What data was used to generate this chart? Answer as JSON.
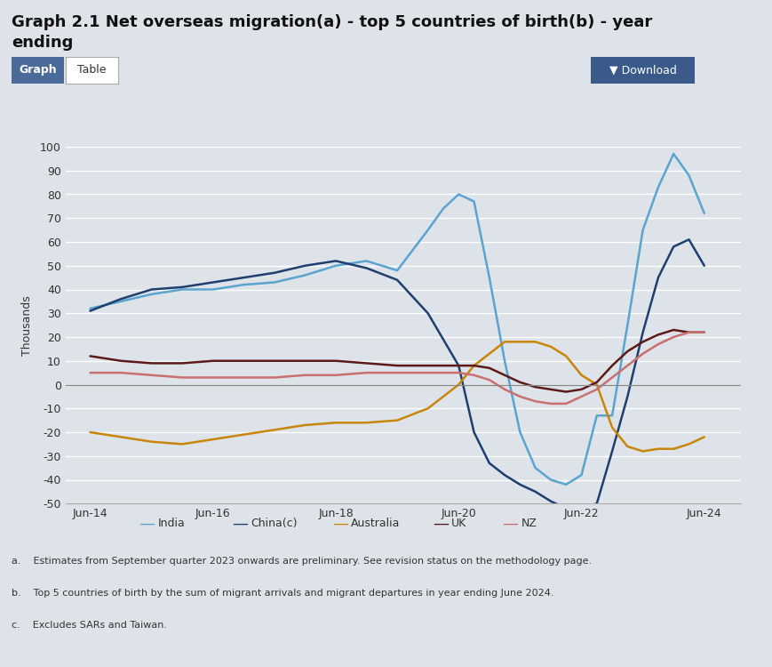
{
  "title": "Graph 2.1 Net overseas migration(a) - top 5 countries of birth(b) - year\nending",
  "ylabel": "Thousands",
  "bg_color": "#dde3e8",
  "plot_bg_color": "#dde3e8",
  "ylim": [
    -50,
    100
  ],
  "yticks": [
    -50,
    -40,
    -30,
    -20,
    -10,
    0,
    10,
    20,
    30,
    40,
    50,
    60,
    70,
    80,
    90,
    100
  ],
  "footnotes": [
    "a.    Estimates from September quarter 2023 onwards are preliminary. See revision status on the methodology page.",
    "b.    Top 5 countries of birth by the sum of migrant arrivals and migrant departures in year ending June 2024.",
    "c.    Excludes SARs and Taiwan."
  ],
  "series": {
    "India": {
      "color": "#5ba4cf",
      "x": [
        2014,
        2014.5,
        2015,
        2015.5,
        2016,
        2016.5,
        2017,
        2017.5,
        2018,
        2018.5,
        2019,
        2019.5,
        2019.75,
        2020,
        2020.25,
        2020.5,
        2020.75,
        2021,
        2021.25,
        2021.5,
        2021.75,
        2022,
        2022.25,
        2022.5,
        2022.75,
        2023,
        2023.25,
        2023.5,
        2023.75,
        2024
      ],
      "y": [
        32,
        35,
        38,
        40,
        40,
        42,
        43,
        46,
        50,
        52,
        48,
        65,
        74,
        80,
        77,
        45,
        10,
        -20,
        -35,
        -40,
        -42,
        -38,
        -13,
        -13,
        25,
        65,
        83,
        97,
        88,
        72
      ]
    },
    "China(c)": {
      "color": "#1f3f6e",
      "x": [
        2014,
        2014.5,
        2015,
        2015.5,
        2016,
        2016.5,
        2017,
        2017.5,
        2018,
        2018.5,
        2019,
        2019.5,
        2020,
        2020.25,
        2020.5,
        2020.75,
        2021,
        2021.25,
        2021.5,
        2021.75,
        2022,
        2022.25,
        2022.5,
        2022.75,
        2023,
        2023.25,
        2023.5,
        2023.75,
        2024
      ],
      "y": [
        31,
        36,
        40,
        41,
        43,
        45,
        47,
        50,
        52,
        49,
        44,
        30,
        8,
        -20,
        -33,
        -38,
        -42,
        -45,
        -49,
        -52,
        -52,
        -50,
        -28,
        -5,
        22,
        45,
        58,
        61,
        50
      ]
    },
    "Australia": {
      "color": "#c8860a",
      "x": [
        2014,
        2014.5,
        2015,
        2015.5,
        2016,
        2016.5,
        2017,
        2017.5,
        2018,
        2018.5,
        2019,
        2019.5,
        2020,
        2020.25,
        2020.5,
        2020.75,
        2021,
        2021.25,
        2021.5,
        2021.75,
        2022,
        2022.25,
        2022.5,
        2022.75,
        2023,
        2023.25,
        2023.5,
        2023.75,
        2024
      ],
      "y": [
        -20,
        -22,
        -24,
        -25,
        -23,
        -21,
        -19,
        -17,
        -16,
        -16,
        -15,
        -10,
        0,
        8,
        13,
        18,
        18,
        18,
        16,
        12,
        4,
        0,
        -18,
        -26,
        -28,
        -27,
        -27,
        -25,
        -22
      ]
    },
    "UK": {
      "color": "#5c1a1a",
      "x": [
        2014,
        2014.5,
        2015,
        2015.5,
        2016,
        2016.5,
        2017,
        2017.5,
        2018,
        2018.5,
        2019,
        2019.5,
        2020,
        2020.25,
        2020.5,
        2020.75,
        2021,
        2021.25,
        2021.5,
        2021.75,
        2022,
        2022.25,
        2022.5,
        2022.75,
        2023,
        2023.25,
        2023.5,
        2023.75,
        2024
      ],
      "y": [
        12,
        10,
        9,
        9,
        10,
        10,
        10,
        10,
        10,
        9,
        8,
        8,
        8,
        8,
        7,
        4,
        1,
        -1,
        -2,
        -3,
        -2,
        1,
        8,
        14,
        18,
        21,
        23,
        22,
        22
      ]
    },
    "NZ": {
      "color": "#c87070",
      "x": [
        2014,
        2014.5,
        2015,
        2015.5,
        2016,
        2016.5,
        2017,
        2017.5,
        2018,
        2018.5,
        2019,
        2019.5,
        2020,
        2020.25,
        2020.5,
        2020.75,
        2021,
        2021.25,
        2021.5,
        2021.75,
        2022,
        2022.25,
        2022.5,
        2022.75,
        2023,
        2023.25,
        2023.5,
        2023.75,
        2024
      ],
      "y": [
        5,
        5,
        4,
        3,
        3,
        3,
        3,
        4,
        4,
        5,
        5,
        5,
        5,
        4,
        2,
        -2,
        -5,
        -7,
        -8,
        -8,
        -5,
        -2,
        3,
        8,
        13,
        17,
        20,
        22,
        22
      ]
    }
  },
  "xtick_positions": [
    2014,
    2016,
    2018,
    2020,
    2022,
    2024
  ],
  "xtick_labels": [
    "Jun-14",
    "Jun-16",
    "Jun-18",
    "Jun-20",
    "Jun-22",
    "Jun-24"
  ],
  "legend_order": [
    "India",
    "China(c)",
    "Australia",
    "UK",
    "NZ"
  ],
  "btn_graph_color": "#4a6a9a",
  "btn_download_color": "#3a5a8a"
}
